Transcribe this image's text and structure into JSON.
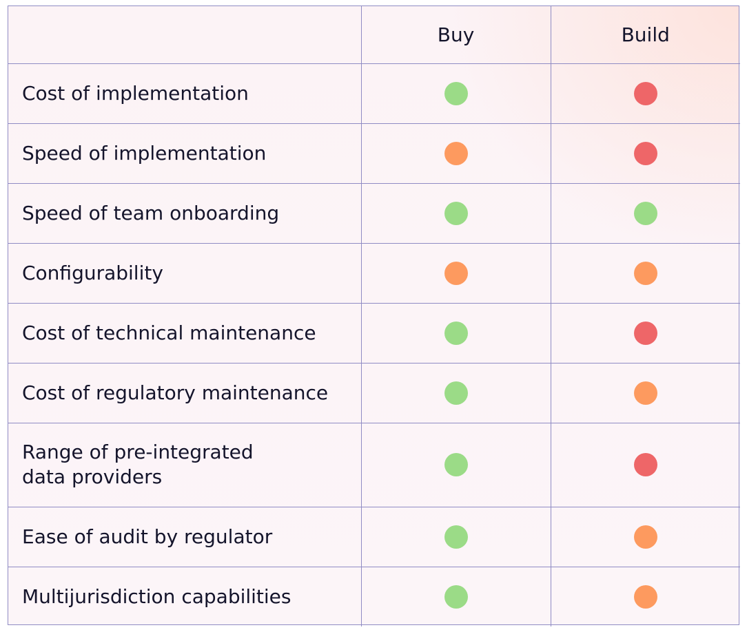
{
  "colors": {
    "green": "#9bdb87",
    "orange": "#fd9a5f",
    "red": "#ee6668",
    "border": "#8f8bc4",
    "text": "#14142b"
  },
  "header": {
    "criteria": "",
    "buy": "Buy",
    "build": "Build"
  },
  "rows": [
    {
      "label": "Cost of implementation",
      "buy": "green",
      "build": "red"
    },
    {
      "label": "Speed of implementation",
      "buy": "orange",
      "build": "red"
    },
    {
      "label": "Speed of team onboarding",
      "buy": "green",
      "build": "green"
    },
    {
      "label": "Configurability",
      "buy": "orange",
      "build": "orange"
    },
    {
      "label": "Cost of technical maintenance",
      "buy": "green",
      "build": "red"
    },
    {
      "label": "Cost of regulatory maintenance",
      "buy": "green",
      "build": "orange"
    },
    {
      "label": "Range of pre-integrated\ndata providers",
      "buy": "green",
      "build": "red"
    },
    {
      "label": "Ease of audit by regulator",
      "buy": "green",
      "build": "orange"
    },
    {
      "label": "Multijurisdiction capabilities",
      "buy": "green",
      "build": "orange"
    }
  ]
}
